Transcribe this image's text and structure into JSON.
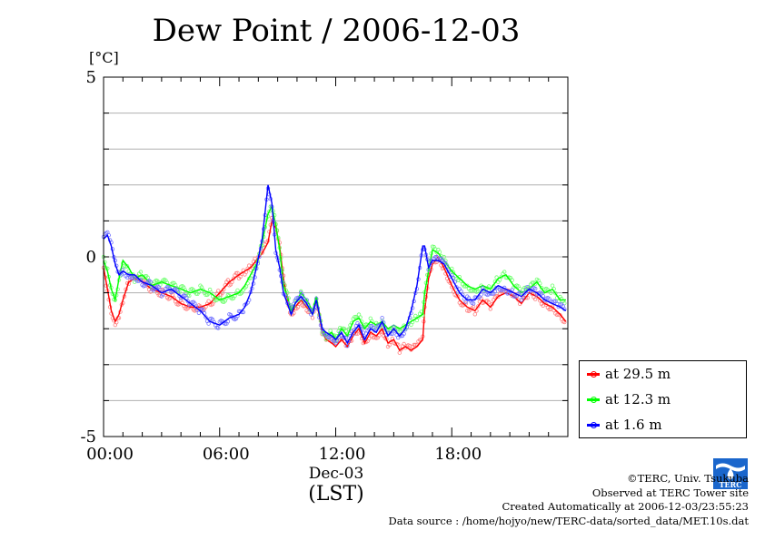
{
  "chart_data": {
    "type": "line",
    "title": "Dew Point / 2006-12-03",
    "ylabel": "[°C]",
    "ylim": [
      -5,
      5
    ],
    "y_ticks": [
      5,
      0,
      -5
    ],
    "y_tick_labels": [
      "5",
      "0",
      "-5"
    ],
    "xlim": [
      0,
      24
    ],
    "x_ticks": [
      0,
      6,
      12,
      18
    ],
    "x_tick_labels": [
      "00:00",
      "06:00",
      "12:00",
      "18:00"
    ],
    "x_sublabel": "Dec-03",
    "x_label": "(LST)",
    "grid": true,
    "legend_position": "bottom-right-outside",
    "series": [
      {
        "name": "at 29.5 m",
        "color": "#ff0000",
        "x": [
          0,
          0.2,
          0.4,
          0.6,
          0.8,
          1.0,
          1.3,
          1.6,
          2.0,
          2.5,
          3.0,
          3.5,
          4.0,
          4.5,
          5.0,
          5.5,
          6.0,
          6.5,
          7.0,
          7.3,
          7.6,
          7.9,
          8.2,
          8.5,
          8.7,
          8.9,
          9.1,
          9.3,
          9.5,
          9.7,
          9.9,
          10.2,
          10.5,
          10.8,
          11.0,
          11.3,
          11.5,
          11.8,
          12.0,
          12.3,
          12.6,
          12.9,
          13.2,
          13.5,
          13.8,
          14.1,
          14.4,
          14.7,
          15.0,
          15.3,
          15.6,
          15.9,
          16.2,
          16.5,
          16.6,
          16.8,
          17.0,
          17.3,
          17.6,
          18.0,
          18.4,
          18.8,
          19.2,
          19.6,
          20.0,
          20.4,
          20.8,
          21.2,
          21.6,
          22.0,
          22.4,
          22.8,
          23.2,
          23.6,
          23.9
        ],
        "y": [
          -0.3,
          -0.9,
          -1.5,
          -1.8,
          -1.6,
          -1.2,
          -0.7,
          -0.6,
          -0.7,
          -0.9,
          -1.0,
          -1.1,
          -1.3,
          -1.4,
          -1.4,
          -1.3,
          -1.0,
          -0.7,
          -0.5,
          -0.4,
          -0.3,
          -0.1,
          0.1,
          0.4,
          1.0,
          0.8,
          0.3,
          -0.6,
          -1.2,
          -1.6,
          -1.4,
          -1.2,
          -1.4,
          -1.6,
          -1.2,
          -2.1,
          -2.3,
          -2.4,
          -2.5,
          -2.3,
          -2.5,
          -2.2,
          -2.0,
          -2.4,
          -2.1,
          -2.2,
          -2.0,
          -2.4,
          -2.3,
          -2.6,
          -2.5,
          -2.6,
          -2.5,
          -2.3,
          -1.5,
          -0.6,
          -0.2,
          0.0,
          -0.3,
          -0.8,
          -1.2,
          -1.4,
          -1.5,
          -1.2,
          -1.4,
          -1.1,
          -1.0,
          -1.1,
          -1.3,
          -1.0,
          -1.1,
          -1.3,
          -1.4,
          -1.6,
          -1.8
        ]
      },
      {
        "name": "at 12.3 m",
        "color": "#00ff00",
        "x": [
          0,
          0.2,
          0.4,
          0.6,
          0.8,
          1.0,
          1.3,
          1.6,
          2.0,
          2.5,
          3.0,
          3.5,
          4.0,
          4.5,
          5.0,
          5.5,
          6.0,
          6.5,
          7.0,
          7.3,
          7.6,
          7.9,
          8.2,
          8.5,
          8.7,
          8.9,
          9.1,
          9.3,
          9.5,
          9.7,
          9.9,
          10.2,
          10.5,
          10.8,
          11.0,
          11.3,
          11.5,
          11.8,
          12.0,
          12.3,
          12.6,
          12.9,
          13.2,
          13.5,
          13.8,
          14.1,
          14.4,
          14.7,
          15.0,
          15.3,
          15.6,
          15.9,
          16.2,
          16.5,
          16.6,
          16.8,
          17.0,
          17.3,
          17.6,
          18.0,
          18.4,
          18.8,
          19.2,
          19.6,
          20.0,
          20.4,
          20.8,
          21.2,
          21.6,
          22.0,
          22.4,
          22.8,
          23.2,
          23.6,
          23.9
        ],
        "y": [
          -0.1,
          -0.4,
          -0.9,
          -1.2,
          -0.6,
          -0.1,
          -0.3,
          -0.6,
          -0.5,
          -0.8,
          -0.7,
          -0.8,
          -0.9,
          -1.0,
          -0.9,
          -1.0,
          -1.2,
          -1.1,
          -1.0,
          -0.8,
          -0.5,
          -0.2,
          0.4,
          1.2,
          1.4,
          0.9,
          0.2,
          -0.8,
          -1.1,
          -1.5,
          -1.3,
          -1.0,
          -1.2,
          -1.5,
          -1.1,
          -2.0,
          -2.2,
          -2.1,
          -2.3,
          -2.0,
          -2.2,
          -1.8,
          -1.7,
          -2.0,
          -1.8,
          -1.9,
          -1.8,
          -2.0,
          -1.9,
          -2.0,
          -1.9,
          -1.8,
          -1.7,
          -1.6,
          -1.0,
          -0.4,
          0.2,
          0.1,
          -0.1,
          -0.4,
          -0.6,
          -0.8,
          -0.9,
          -0.8,
          -0.9,
          -0.6,
          -0.5,
          -0.8,
          -1.0,
          -0.9,
          -0.7,
          -1.0,
          -0.9,
          -1.2,
          -1.2
        ]
      },
      {
        "name": "at 1.6 m",
        "color": "#0000ff",
        "x": [
          0,
          0.2,
          0.4,
          0.6,
          0.8,
          1.0,
          1.3,
          1.6,
          2.0,
          2.5,
          3.0,
          3.5,
          4.0,
          4.5,
          5.0,
          5.5,
          6.0,
          6.5,
          7.0,
          7.3,
          7.6,
          7.9,
          8.2,
          8.5,
          8.7,
          8.9,
          9.1,
          9.3,
          9.5,
          9.7,
          9.9,
          10.2,
          10.5,
          10.8,
          11.0,
          11.3,
          11.5,
          11.8,
          12.0,
          12.3,
          12.6,
          12.9,
          13.2,
          13.5,
          13.8,
          14.1,
          14.4,
          14.7,
          15.0,
          15.3,
          15.6,
          15.9,
          16.2,
          16.5,
          16.6,
          16.8,
          17.0,
          17.3,
          17.6,
          18.0,
          18.4,
          18.8,
          19.2,
          19.6,
          20.0,
          20.4,
          20.8,
          21.2,
          21.6,
          22.0,
          22.4,
          22.8,
          23.2,
          23.6,
          23.9
        ],
        "y": [
          0.5,
          0.6,
          0.3,
          -0.2,
          -0.5,
          -0.4,
          -0.5,
          -0.5,
          -0.7,
          -0.8,
          -1.0,
          -0.9,
          -1.1,
          -1.3,
          -1.5,
          -1.8,
          -1.9,
          -1.7,
          -1.6,
          -1.4,
          -1.0,
          -0.3,
          0.5,
          2.0,
          1.5,
          0.2,
          -0.3,
          -1.0,
          -1.3,
          -1.6,
          -1.3,
          -1.1,
          -1.3,
          -1.6,
          -1.2,
          -2.0,
          -2.1,
          -2.2,
          -2.3,
          -2.1,
          -2.4,
          -2.1,
          -1.9,
          -2.3,
          -2.0,
          -2.1,
          -1.8,
          -2.2,
          -2.0,
          -2.2,
          -2.0,
          -1.5,
          -0.8,
          0.3,
          0.3,
          -0.3,
          -0.1,
          -0.1,
          -0.2,
          -0.6,
          -1.0,
          -1.2,
          -1.2,
          -0.9,
          -1.0,
          -0.8,
          -0.9,
          -1.0,
          -1.1,
          -0.9,
          -1.0,
          -1.2,
          -1.3,
          -1.4,
          -1.5
        ]
      }
    ]
  },
  "credits": {
    "copyright": "©TERC, Univ. Tsukuba",
    "observed": "Observed at TERC Tower site",
    "created": "Created Automatically at 2006-12-03/23:55:23",
    "source": "Data source : /home/hojyo/new/TERC-data/sorted_data/MET.10s.dat"
  },
  "logo": {
    "icon": "terc-logo-icon",
    "text": "TERC",
    "color": "#1a66cc"
  }
}
